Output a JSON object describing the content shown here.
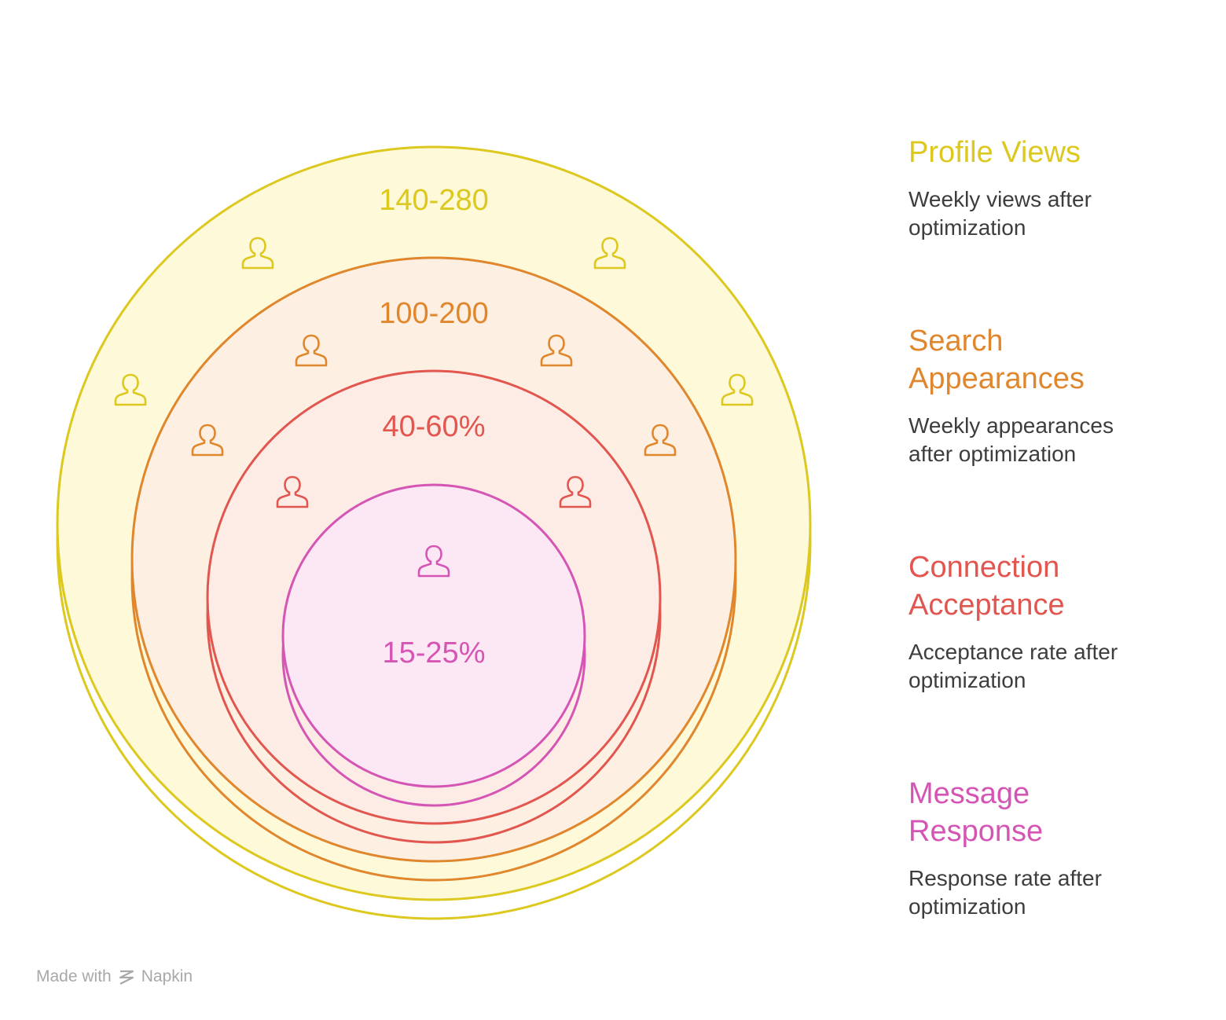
{
  "rings": [
    {
      "id": "profile-views",
      "value": "140-280",
      "color": "#dcc81e",
      "fill": "#fdf9d9"
    },
    {
      "id": "search-appearances",
      "value": "100-200",
      "color": "#e0862c",
      "fill": "#fdf0e2"
    },
    {
      "id": "connection-acceptance",
      "value": "40-60%",
      "color": "#e25650",
      "fill": "#fdebe6"
    },
    {
      "id": "message-response",
      "value": "15-25%",
      "color": "#d555b4",
      "fill": "#fce8f4"
    }
  ],
  "icons": {
    "name": "person-icon"
  },
  "legend": [
    {
      "title": "Profile Views",
      "description": "Weekly views after optimization",
      "color": "#dcc81e"
    },
    {
      "title": "Search Appearances",
      "description": "Weekly appearances after optimization",
      "color": "#e0862c"
    },
    {
      "title": "Connection Acceptance",
      "description": "Acceptance rate after optimization",
      "color": "#e25650"
    },
    {
      "title": "Message Response",
      "description": "Response rate after optimization",
      "color": "#d555b4"
    }
  ],
  "footer": {
    "made_with": "Made with",
    "brand": "Napkin"
  }
}
